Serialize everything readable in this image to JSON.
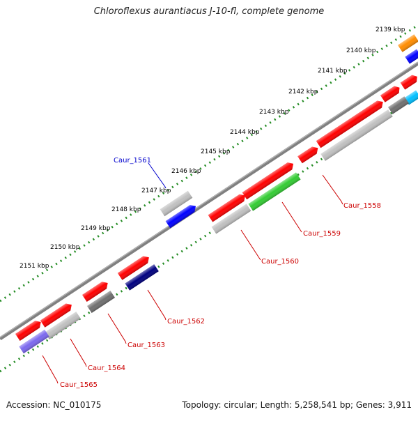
{
  "title": "Chloroflexus aurantiacus J-10-fl, complete genome",
  "footer": {
    "accession": "Accession: NC_010175",
    "summary": "Topology: circular; Length: 5,258,541 bp; Genes: 3,911"
  },
  "ticks": [
    "2139 kbp",
    "2140 kbp",
    "2141 kbp",
    "2142 kbp",
    "2143 kbp",
    "2144 kbp",
    "2145 kbp",
    "2146 kbp",
    "2147 kbp",
    "2148 kbp",
    "2149 kbp",
    "2150 kbp",
    "2151 kbp"
  ],
  "gene_labels": {
    "caur_1558": "Caur_1558",
    "caur_1559": "Caur_1559",
    "caur_1560": "Caur_1560",
    "caur_1561": "Caur_1561",
    "caur_1562": "Caur_1562",
    "caur_1563": "Caur_1563",
    "caur_1564": "Caur_1564",
    "caur_1565": "Caur_1565"
  },
  "colors": {
    "red": "#ff0000",
    "blue": "#0000ff",
    "navy": "#000080",
    "green": "#33cc33",
    "gray": "#c0c0c0",
    "darkgray": "#707070",
    "orange": "#ff8c00",
    "lavender": "#7b68ee",
    "cyan": "#00bfff",
    "ticks": "#228b22",
    "backbone": "#808080",
    "label_red": "#cc0000",
    "label_blue": "#0000cc"
  }
}
